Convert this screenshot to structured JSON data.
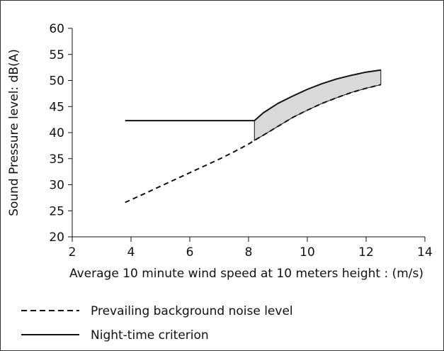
{
  "chart_data": {
    "type": "line",
    "title": "",
    "xlabel": "Average 10 minute wind speed at 10 meters height : (m/s)",
    "ylabel": "Sound Pressure level: dB(A)",
    "xlim": [
      2,
      14
    ],
    "ylim": [
      20,
      60
    ],
    "x_ticks": [
      2,
      4,
      6,
      8,
      10,
      12,
      14
    ],
    "y_ticks": [
      20,
      25,
      30,
      35,
      40,
      45,
      50,
      55,
      60
    ],
    "x_tick_labels": [
      "2",
      "4",
      "6",
      "8",
      "10",
      "12",
      "14"
    ],
    "y_tick_labels": [
      "20",
      "25",
      "30",
      "35",
      "40",
      "45",
      "50",
      "55",
      "60"
    ],
    "grid": false,
    "legend_position": "bottom",
    "series": [
      {
        "name": "Prevailing background noise level",
        "style": "dashed",
        "color": "#111111",
        "x": [
          3.8,
          4.5,
          5,
          5.5,
          6,
          6.5,
          7,
          7.5,
          8,
          8.2,
          8.5,
          9,
          9.5,
          10,
          10.5,
          11,
          11.5,
          12,
          12.5
        ],
        "y": [
          26.6,
          28.4,
          29.7,
          31.0,
          32.3,
          33.6,
          34.9,
          36.3,
          37.8,
          38.5,
          39.5,
          41.2,
          42.9,
          44.3,
          45.6,
          46.7,
          47.7,
          48.5,
          49.2
        ]
      },
      {
        "name": "Night-time criterion",
        "style": "solid",
        "color": "#111111",
        "x": [
          3.8,
          4.5,
          5,
          5.5,
          6,
          6.5,
          7,
          7.5,
          8,
          8.2,
          8.5,
          9,
          9.5,
          10,
          10.5,
          11,
          11.5,
          12,
          12.5
        ],
        "y": [
          42.3,
          42.3,
          42.3,
          42.3,
          42.3,
          42.3,
          42.3,
          42.3,
          42.3,
          42.3,
          43.8,
          45.6,
          47.0,
          48.3,
          49.4,
          50.3,
          51.0,
          51.6,
          52.0
        ]
      }
    ],
    "shaded_region": {
      "between": [
        "Night-time criterion",
        "Prevailing background noise level"
      ],
      "x_from": 8.2,
      "x_to": 12.5,
      "color": "#d9d9d9"
    }
  },
  "legend": {
    "items": [
      {
        "label": "Prevailing background noise level",
        "style": "dashed"
      },
      {
        "label": "Night-time criterion",
        "style": "solid"
      }
    ]
  }
}
